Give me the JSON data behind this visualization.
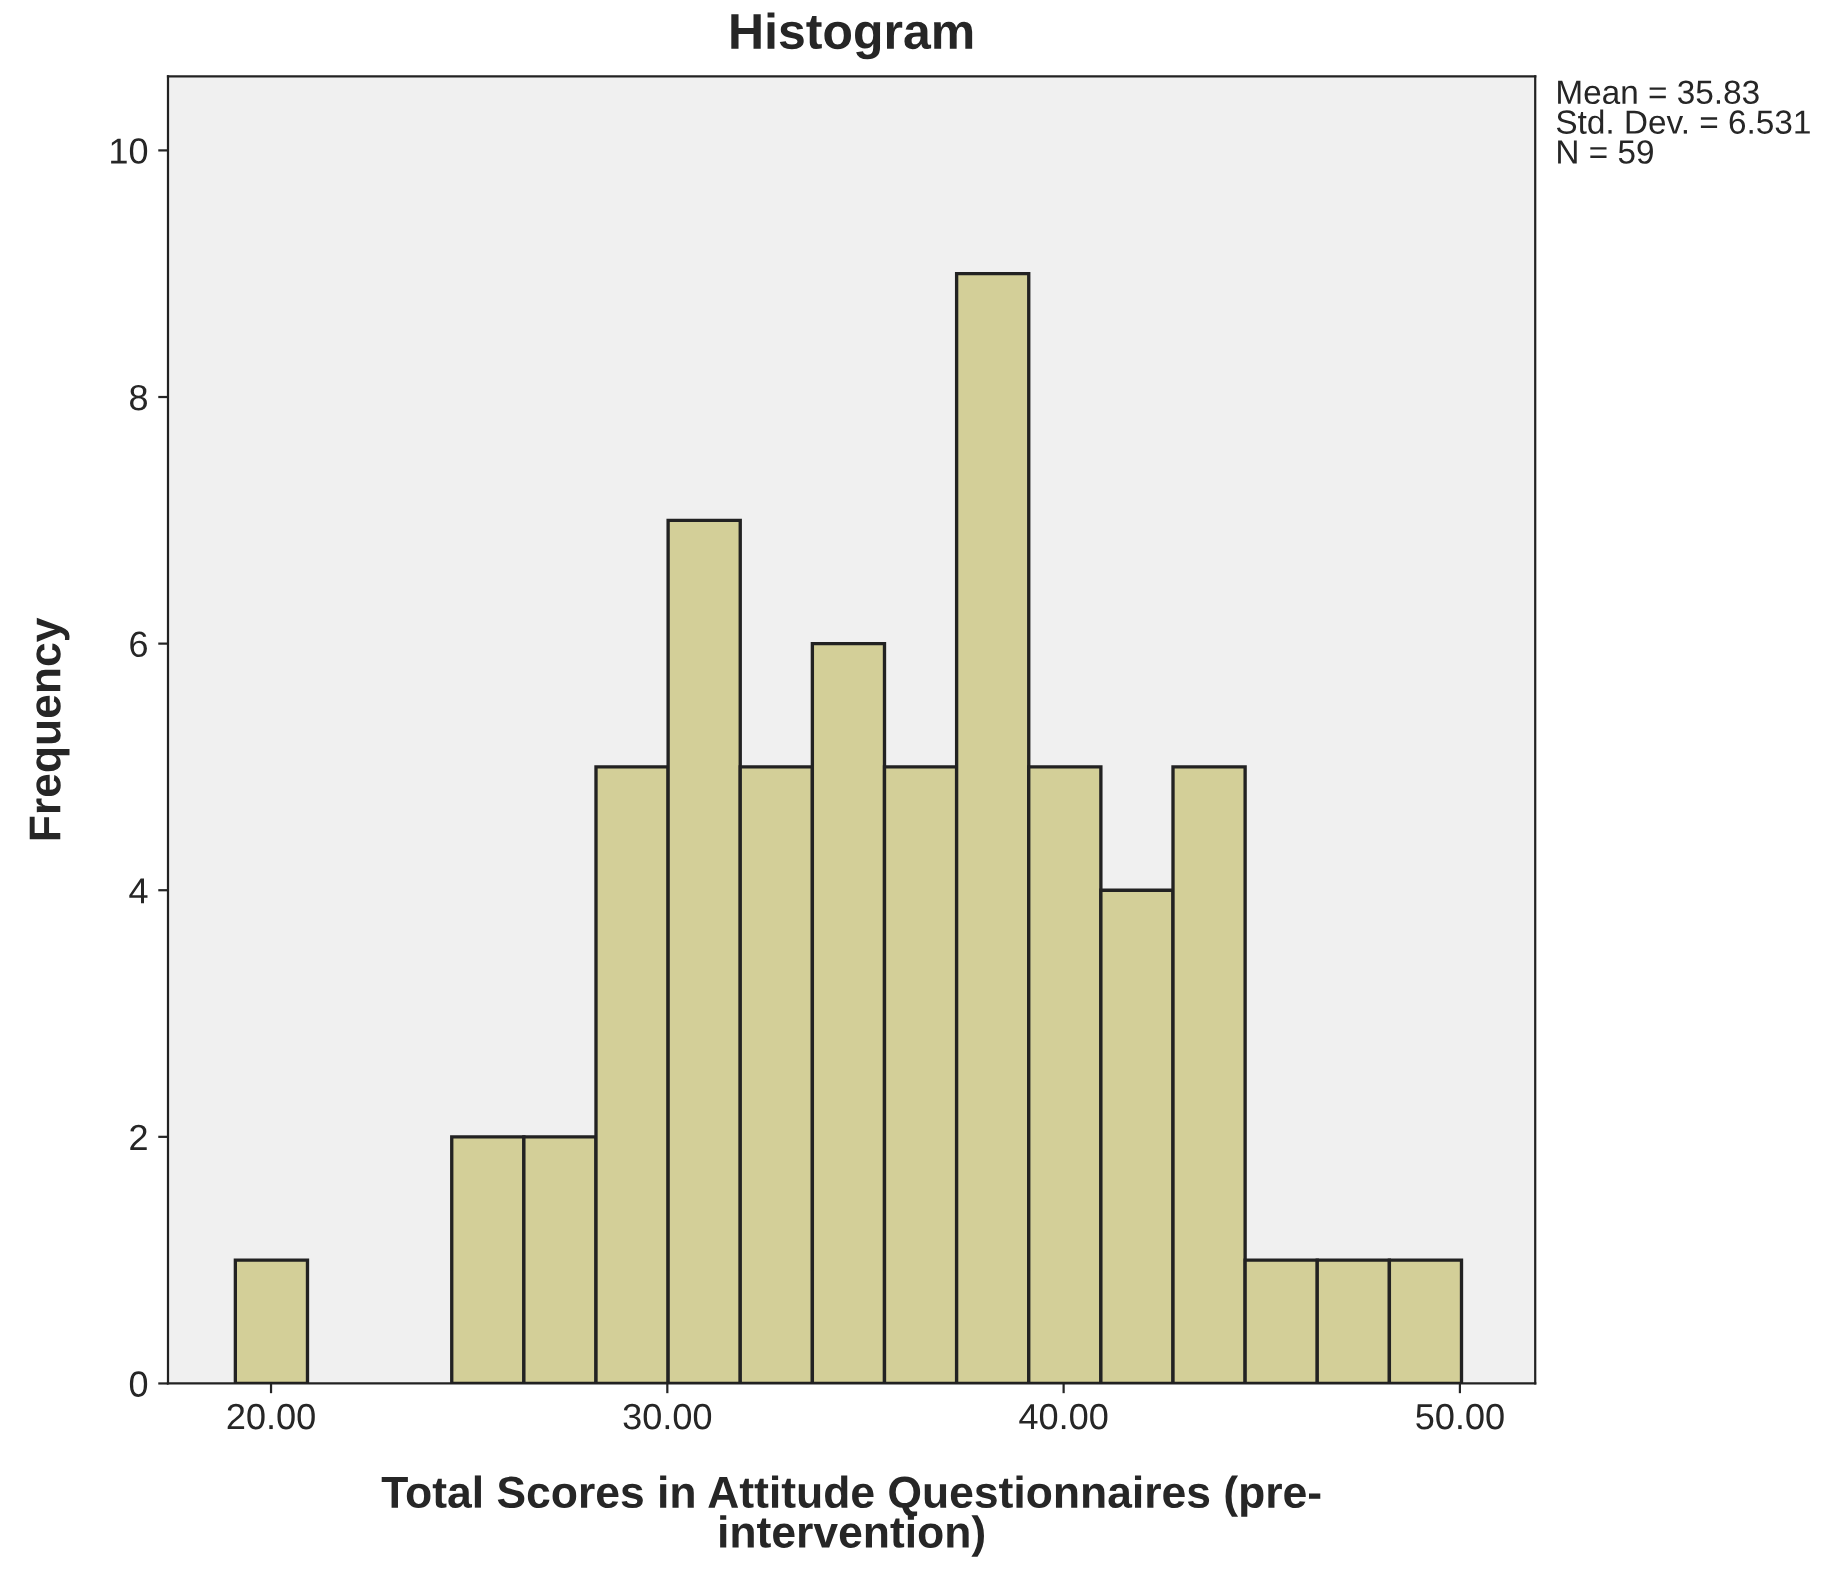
{
  "chart_data": {
    "type": "histogram",
    "title": "Histogram",
    "xlabel": "Total Scores in Attitude Questionnaires (pre-\nintervention)",
    "ylabel": "Frequency",
    "bins": [
      19.1,
      20.92,
      22.74,
      24.56,
      26.38,
      28.2,
      30.02,
      31.84,
      33.66,
      35.48,
      37.3,
      39.12,
      40.94,
      42.76,
      44.58,
      46.4,
      48.22,
      50.04
    ],
    "values": [
      1,
      0,
      0,
      2,
      2,
      5,
      7,
      5,
      6,
      5,
      9,
      5,
      4,
      5,
      1,
      1,
      1
    ],
    "color": "#d3cf98",
    "xlim": [
      17.4,
      51.9
    ],
    "xticks": [
      {
        "value": 20,
        "label": "20.00"
      },
      {
        "value": 30,
        "label": "30.00"
      },
      {
        "value": 40,
        "label": "40.00"
      },
      {
        "value": 50,
        "label": "50.00"
      }
    ],
    "ylim": [
      0,
      10.6
    ],
    "yticks": [
      0,
      2,
      4,
      6,
      8,
      10
    ],
    "grid": false,
    "legend": false,
    "annotations": [
      "Mean = 35.83\nStd. Dev. = 6.531\nN = 59"
    ]
  }
}
